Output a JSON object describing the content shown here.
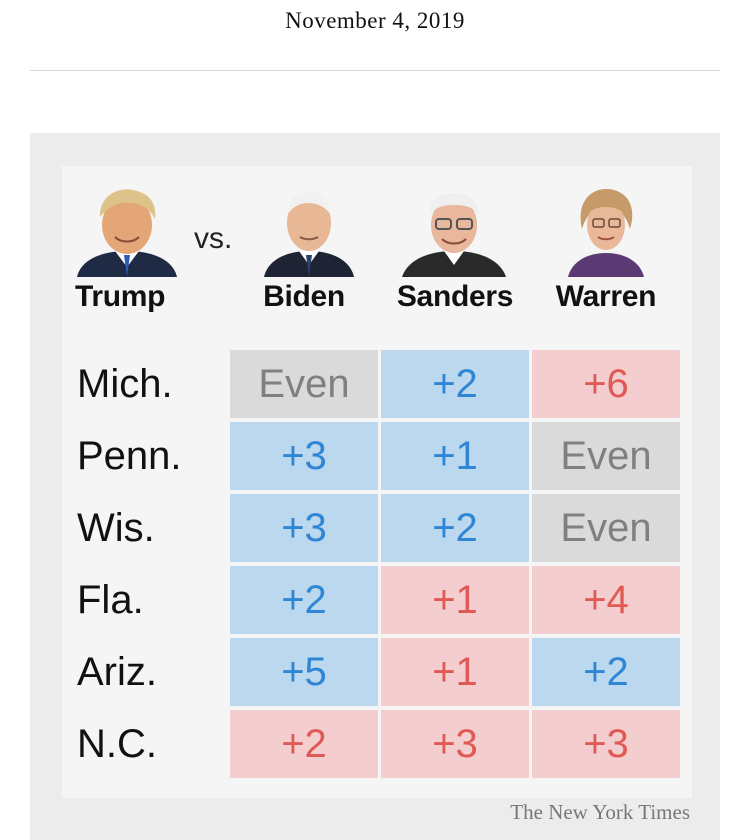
{
  "header": {
    "date": "November 4, 2019"
  },
  "matchup": {
    "opponent": "Trump",
    "vs_label": "vs.",
    "candidates": [
      "Biden",
      "Sanders",
      "Warren"
    ]
  },
  "chart_data": {
    "type": "table",
    "title": "",
    "columns": [
      "Biden",
      "Sanders",
      "Warren"
    ],
    "rows": [
      "Mich.",
      "Penn.",
      "Wis.",
      "Fla.",
      "Ariz.",
      "N.C."
    ],
    "cells": [
      [
        {
          "label": "Even",
          "lean": "even"
        },
        {
          "label": "+2",
          "lean": "dem"
        },
        {
          "label": "+6",
          "lean": "rep"
        }
      ],
      [
        {
          "label": "+3",
          "lean": "dem"
        },
        {
          "label": "+1",
          "lean": "dem"
        },
        {
          "label": "Even",
          "lean": "even"
        }
      ],
      [
        {
          "label": "+3",
          "lean": "dem"
        },
        {
          "label": "+2",
          "lean": "dem"
        },
        {
          "label": "Even",
          "lean": "even"
        }
      ],
      [
        {
          "label": "+2",
          "lean": "dem"
        },
        {
          "label": "+1",
          "lean": "rep"
        },
        {
          "label": "+4",
          "lean": "rep"
        }
      ],
      [
        {
          "label": "+5",
          "lean": "dem"
        },
        {
          "label": "+1",
          "lean": "rep"
        },
        {
          "label": "+2",
          "lean": "dem"
        }
      ],
      [
        {
          "label": "+2",
          "lean": "rep"
        },
        {
          "label": "+3",
          "lean": "rep"
        },
        {
          "label": "+3",
          "lean": "rep"
        }
      ]
    ],
    "colors": {
      "dem_fill": "#bcd8ee",
      "dem_text": "#2f86d4",
      "rep_fill": "#f4cece",
      "rep_text": "#e05a55",
      "even_fill": "#dadada",
      "even_text": "#808080"
    }
  },
  "footer": {
    "credit": "The New York Times"
  }
}
